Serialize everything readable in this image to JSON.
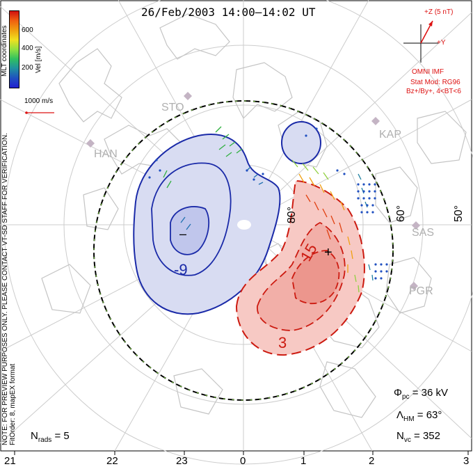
{
  "title": "26/Feb/2003  14:00–14:02 UT",
  "colorbar": {
    "ticks": [
      "600",
      "400",
      "200"
    ],
    "unit_label": "Vel [m/s]",
    "coord_label": "MLT coordinates",
    "colors": [
      "#d01010",
      "#f06010",
      "#f0a010",
      "#f0e020",
      "#90e040",
      "#30c060",
      "#2090a0",
      "#2050c0",
      "#2020d0"
    ]
  },
  "velocity_ref": "1000 m/s",
  "notes": {
    "preview": "NOTE: FOR PREVIEW PURPOSES ONLY. PLEASE CONTACT VT-SD STAFF FOR VERIFICATION.",
    "fit": "FitOrder: 8, mapEX format"
  },
  "imf": {
    "z_label": "+Z (5 nT)",
    "y_label": "+Y",
    "source": "OMNI IMF",
    "model_line1": "Stat Mod: RG96",
    "model_line2": "Bz+/By+, 4<BT<6"
  },
  "stations": [
    "STO",
    "HAN",
    "KAP",
    "SAS",
    "PGR"
  ],
  "lat_labels": [
    "80°",
    "60°",
    "50°"
  ],
  "contours": {
    "neg": "-9",
    "neg_center": "–",
    "pos": "15",
    "pos_outer": "3",
    "pos_center": "+"
  },
  "stats": {
    "phi_main": "Φ",
    "phi_sub": "pc",
    "phi_value": "= 36 kV",
    "lambda_main": "Λ",
    "lambda_sub": "HM",
    "lambda_value": "= 63°",
    "nvc_main": "N",
    "nvc_sub": "vc",
    "nvc_value": "= 352",
    "nrads_main": "N",
    "nrads_sub": "rads",
    "nrads_value": "= 5"
  },
  "mlt_axis": [
    "21",
    "22",
    "23",
    "0",
    "1",
    "2",
    "3"
  ],
  "colors": {
    "neg_fill": "#d8dcf2",
    "neg_line": "#1a2aa8",
    "pos_fill": "#f7c9c4",
    "pos_line": "#cc1a10",
    "coast": "#c8c8c8",
    "grid": "#c8c8c8"
  }
}
